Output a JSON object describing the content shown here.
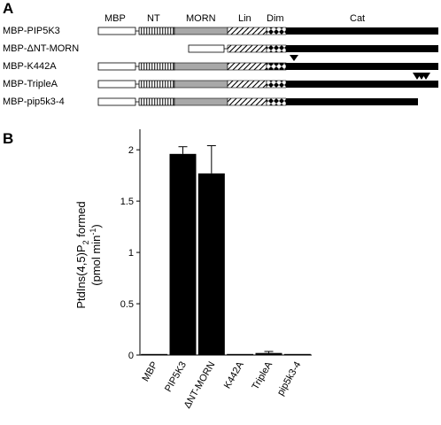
{
  "panel_a": {
    "label": "A",
    "domains": [
      {
        "key": "mbp",
        "name": "MBP"
      },
      {
        "key": "nt",
        "name": "NT"
      },
      {
        "key": "morn",
        "name": "MORN"
      },
      {
        "key": "lin",
        "name": "Lin"
      },
      {
        "key": "dim",
        "name": "Dim"
      },
      {
        "key": "cat",
        "name": "Cat"
      }
    ],
    "constructs": [
      {
        "name": "MBP-PIP5K3"
      },
      {
        "name": "MBP-ΔNT-MORN"
      },
      {
        "name": "MBP-K442A"
      },
      {
        "name": "MBP-TripleA"
      },
      {
        "name": "MBP-pip5k3-4"
      }
    ]
  },
  "panel_b": {
    "label": "B"
  },
  "chart_data": {
    "type": "bar",
    "categories": [
      "MBP",
      "PIP5K3",
      "ΔNT-MORN",
      "K442A",
      "TripleA",
      "pip5k3-4"
    ],
    "values": [
      0.0,
      1.96,
      1.77,
      0.0,
      0.02,
      0.0
    ],
    "errors": [
      0.0,
      0.07,
      0.27,
      0.0,
      0.015,
      0.0
    ],
    "title": "",
    "xlabel": "",
    "ylabel_parts": [
      "PtdIns(4,5)P",
      "2",
      " formed",
      "(pmol min",
      "-1",
      ")"
    ],
    "ylim": [
      0,
      2.2
    ],
    "yticks": [
      "0",
      "0.5",
      "1",
      "1.5",
      "2"
    ],
    "grid": false,
    "colors": {
      "bar": "#000000"
    }
  }
}
